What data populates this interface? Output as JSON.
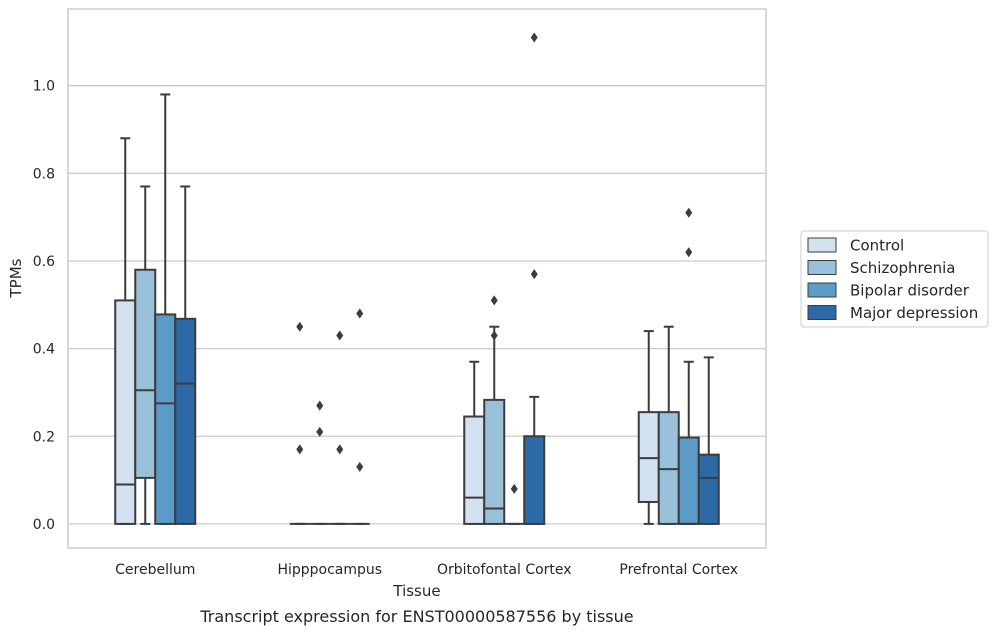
{
  "chart_data": {
    "type": "box",
    "xlabel": "Tissue",
    "ylabel": "TPMs",
    "caption": "Transcript expression for ENST00000587556 by tissue",
    "ylim": [
      -0.055,
      1.175
    ],
    "yticks": [
      0.0,
      0.2,
      0.4,
      0.6,
      0.8,
      1.0
    ],
    "ytick_labels": [
      "0.0",
      "0.2",
      "0.4",
      "0.6",
      "0.8",
      "1.0"
    ],
    "grid": true,
    "legend_position": "right",
    "categories": [
      "Cerebellum",
      "Hipppocampus",
      "Orbitofontal Cortex",
      "Prefrontal Cortex"
    ],
    "series": [
      {
        "name": "Control",
        "color": "#d2e2f0",
        "boxes": [
          {
            "min": 0.0,
            "q1": 0.0,
            "median": 0.09,
            "q3": 0.51,
            "max": 0.88,
            "outliers": []
          },
          {
            "min": 0.0,
            "q1": 0.0,
            "median": 0.0,
            "q3": 0.0,
            "max": 0.0,
            "outliers": [
              0.45,
              0.17
            ]
          },
          {
            "min": 0.0,
            "q1": 0.0,
            "median": 0.06,
            "q3": 0.245,
            "max": 0.37,
            "outliers": []
          },
          {
            "min": 0.0,
            "q1": 0.05,
            "median": 0.15,
            "q3": 0.255,
            "max": 0.44,
            "outliers": []
          }
        ]
      },
      {
        "name": "Schizophrenia",
        "color": "#9ac1da",
        "boxes": [
          {
            "min": 0.0,
            "q1": 0.105,
            "median": 0.305,
            "q3": 0.58,
            "max": 0.77,
            "outliers": []
          },
          {
            "min": 0.0,
            "q1": 0.0,
            "median": 0.0,
            "q3": 0.0,
            "max": 0.0,
            "outliers": [
              0.27,
              0.21
            ]
          },
          {
            "min": 0.0,
            "q1": 0.0,
            "median": 0.035,
            "q3": 0.283,
            "max": 0.45,
            "outliers": [
              0.51,
              0.43
            ]
          },
          {
            "min": 0.0,
            "q1": 0.0,
            "median": 0.125,
            "q3": 0.255,
            "max": 0.45,
            "outliers": []
          }
        ]
      },
      {
        "name": "Bipolar disorder",
        "color": "#5b9bc7",
        "boxes": [
          {
            "min": 0.0,
            "q1": 0.0,
            "median": 0.275,
            "q3": 0.478,
            "max": 0.98,
            "outliers": []
          },
          {
            "min": 0.0,
            "q1": 0.0,
            "median": 0.0,
            "q3": 0.0,
            "max": 0.0,
            "outliers": [
              0.43,
              0.17
            ]
          },
          {
            "min": 0.0,
            "q1": 0.0,
            "median": 0.0,
            "q3": 0.0,
            "max": 0.0,
            "outliers": [
              0.08
            ]
          },
          {
            "min": 0.0,
            "q1": 0.0,
            "median": 0.0,
            "q3": 0.197,
            "max": 0.37,
            "outliers": [
              0.71,
              0.62
            ]
          }
        ]
      },
      {
        "name": "Major depression",
        "color": "#2b6aa7",
        "boxes": [
          {
            "min": 0.0,
            "q1": 0.0,
            "median": 0.32,
            "q3": 0.468,
            "max": 0.77,
            "outliers": []
          },
          {
            "min": 0.0,
            "q1": 0.0,
            "median": 0.0,
            "q3": 0.0,
            "max": 0.0,
            "outliers": [
              0.48,
              0.13
            ]
          },
          {
            "min": 0.0,
            "q1": 0.0,
            "median": 0.0,
            "q3": 0.2,
            "max": 0.29,
            "outliers": [
              1.11,
              0.57
            ]
          },
          {
            "min": 0.0,
            "q1": 0.0,
            "median": 0.105,
            "q3": 0.158,
            "max": 0.38,
            "outliers": []
          }
        ]
      }
    ]
  }
}
